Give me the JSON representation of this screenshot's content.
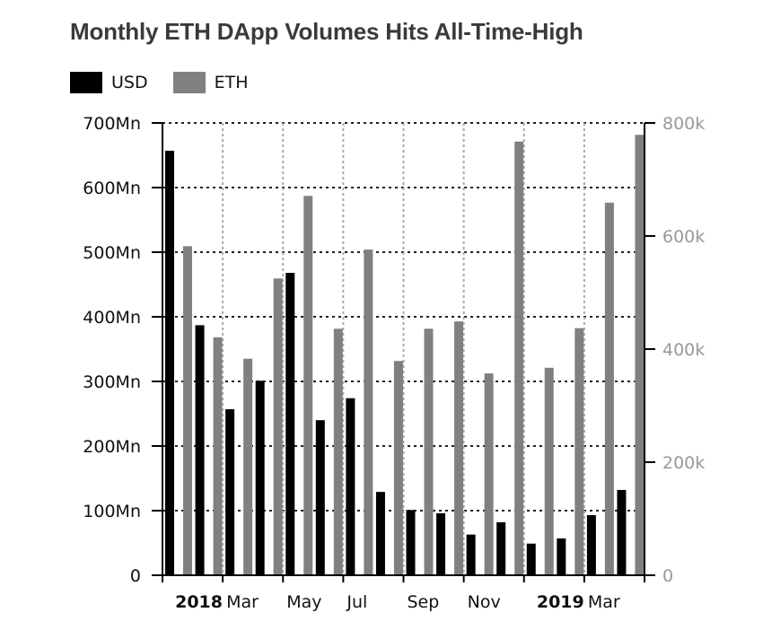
{
  "title": "Monthly ETH DApp Volumes Hits All-Time-High",
  "legend": [
    {
      "name": "USD",
      "color": "#000000"
    },
    {
      "name": "ETH",
      "color": "#808080"
    }
  ],
  "chart_data": {
    "type": "bar",
    "title": "Monthly ETH DApp Volumes Hits All-Time-High",
    "categories": [
      "2018-01",
      "2018-02",
      "2018-03",
      "2018-04",
      "2018-05",
      "2018-06",
      "2018-07",
      "2018-08",
      "2018-09",
      "2018-10",
      "2018-11",
      "2018-12",
      "2019-01",
      "2019-02",
      "2019-03",
      "2019-04"
    ],
    "series": [
      {
        "name": "USD",
        "axis": "left",
        "color": "#000000",
        "values": [
          657000000,
          387000000,
          257000000,
          301000000,
          468000000,
          240000000,
          274000000,
          129000000,
          101000000,
          96000000,
          63000000,
          82000000,
          49000000,
          57000000,
          93000000,
          132000000
        ]
      },
      {
        "name": "ETH",
        "axis": "right",
        "color": "#808080",
        "values": [
          582000,
          421000,
          383000,
          525000,
          671000,
          436000,
          576000,
          379000,
          436000,
          449000,
          357000,
          767000,
          367000,
          437000,
          659000,
          779000
        ]
      }
    ],
    "left_axis": {
      "ylim": [
        0,
        700000000
      ],
      "ticks": [
        0,
        100000000,
        200000000,
        300000000,
        400000000,
        500000000,
        600000000,
        700000000
      ],
      "tick_labels": [
        "0",
        "100Mn",
        "200Mn",
        "300Mn",
        "400Mn",
        "500Mn",
        "600Mn",
        "700Mn"
      ],
      "color": "#111111"
    },
    "right_axis": {
      "ylim": [
        0,
        800000
      ],
      "ticks": [
        0,
        200000,
        400000,
        600000,
        800000
      ],
      "tick_labels": [
        "0",
        "200k",
        "400k",
        "600k",
        "800k"
      ],
      "color": "#999999"
    },
    "x_axis": {
      "tick_labels": [
        {
          "label": "2018",
          "bold": true,
          "month_index": 0
        },
        {
          "label": "Mar",
          "bold": false,
          "month_index": 2
        },
        {
          "label": "May",
          "bold": false,
          "month_index": 4
        },
        {
          "label": "Jul",
          "bold": false,
          "month_index": 6
        },
        {
          "label": "Sep",
          "bold": false,
          "month_index": 8
        },
        {
          "label": "Nov",
          "bold": false,
          "month_index": 10
        },
        {
          "label": "2019",
          "bold": true,
          "month_index": 12
        },
        {
          "label": "Mar",
          "bold": false,
          "month_index": 14
        }
      ]
    },
    "grid": {
      "horizontal": true,
      "vertical": true
    },
    "legend_position": "top-left"
  }
}
